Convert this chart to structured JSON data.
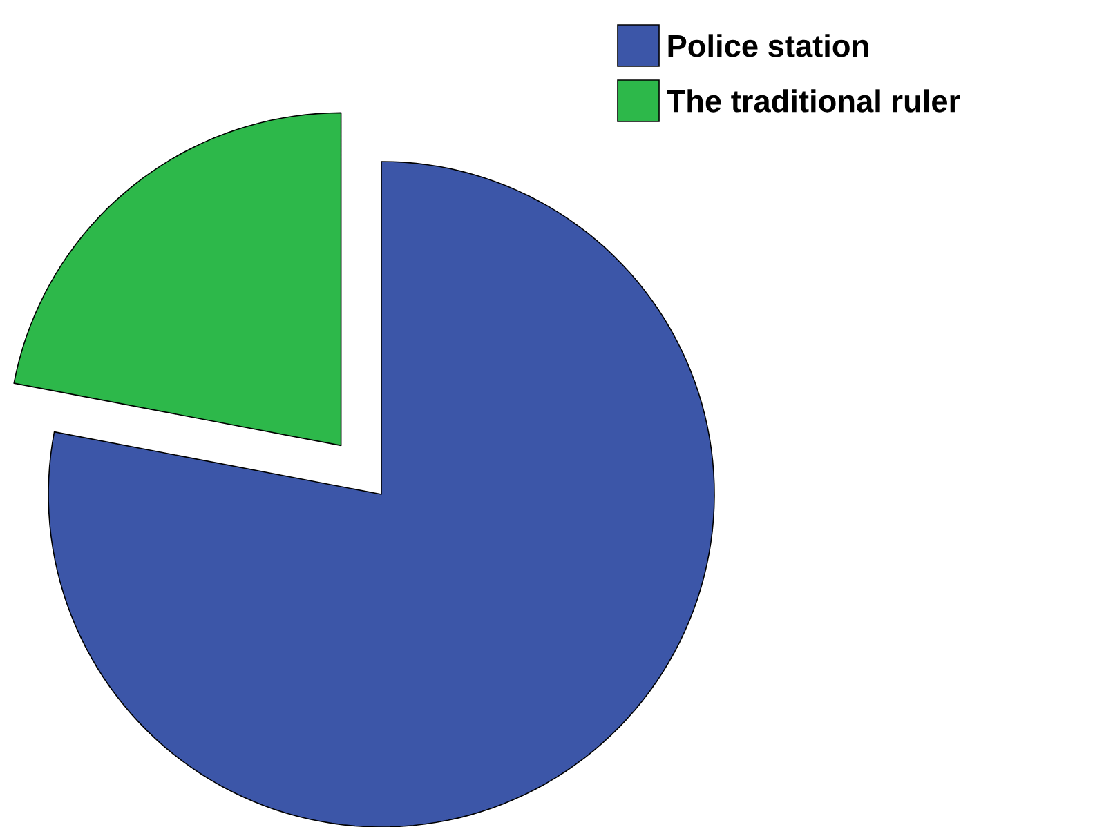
{
  "chart_data": {
    "type": "pie",
    "categories": [
      "Police station",
      "The traditional ruler"
    ],
    "values": [
      78,
      22
    ],
    "colors": [
      "#3c56a8",
      "#2db84a"
    ],
    "legend": "top right"
  }
}
